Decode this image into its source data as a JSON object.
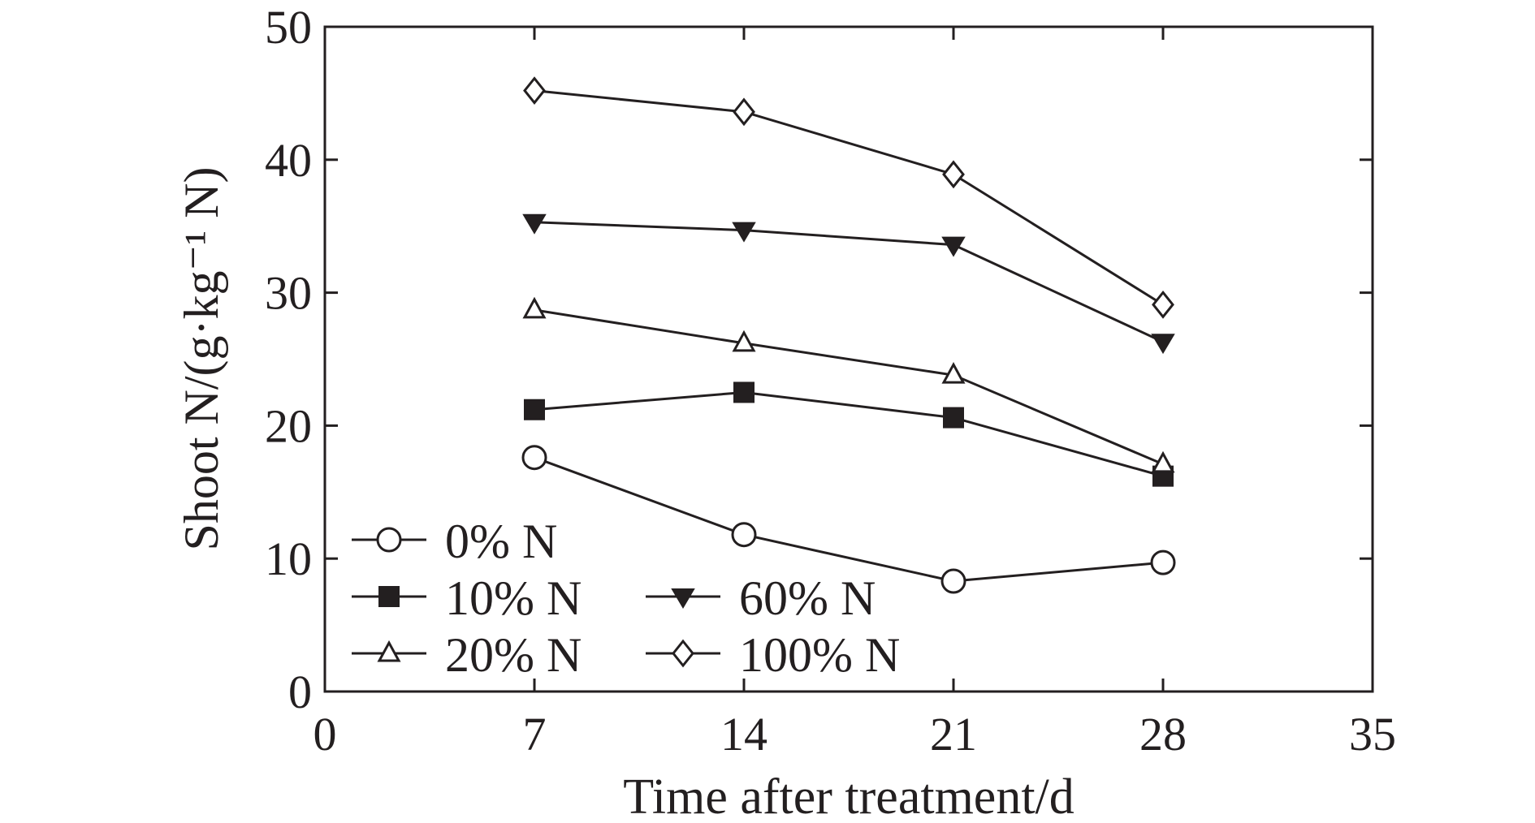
{
  "chart_data": {
    "type": "line",
    "title": "",
    "xlabel": "Time after treatment/d",
    "ylabel": "Shoot N/(g·kg⁻¹ N)",
    "xlim": [
      0,
      35
    ],
    "ylim": [
      0,
      50
    ],
    "xticks": [
      0,
      7,
      14,
      21,
      28,
      35
    ],
    "yticks": [
      0,
      10,
      20,
      30,
      40,
      50
    ],
    "grid": false,
    "legend_placement": "bottom-left",
    "x": [
      7,
      14,
      21,
      28
    ],
    "series": [
      {
        "name": "0% N",
        "marker": "circle-open",
        "values": [
          17.6,
          11.8,
          8.3,
          9.7
        ]
      },
      {
        "name": "10% N",
        "marker": "square-filled",
        "values": [
          21.2,
          22.5,
          20.6,
          16.2
        ]
      },
      {
        "name": "20% N",
        "marker": "triangle-up-open",
        "values": [
          28.7,
          26.2,
          23.8,
          17.1
        ]
      },
      {
        "name": "60% N",
        "marker": "triangle-down-filled",
        "values": [
          35.3,
          34.7,
          33.6,
          26.3
        ]
      },
      {
        "name": "100% N",
        "marker": "diamond-open",
        "values": [
          45.2,
          43.6,
          38.9,
          29.1
        ]
      }
    ],
    "colors": {
      "ink": "#231f20",
      "background": "#ffffff"
    }
  }
}
